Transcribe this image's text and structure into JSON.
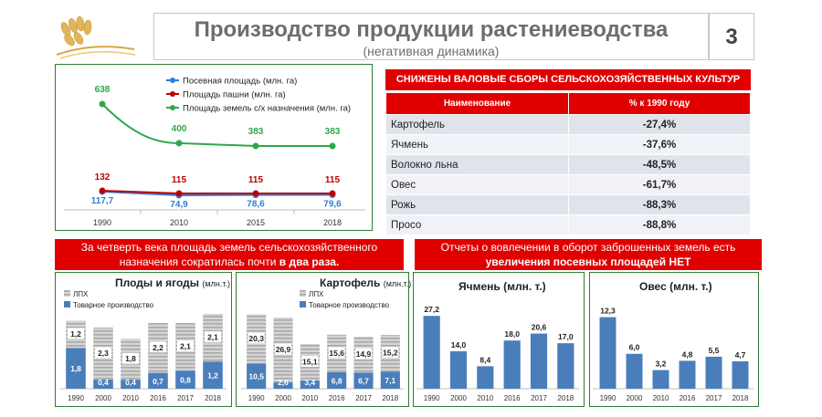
{
  "header": {
    "title": "Производство продукции растениеводства",
    "subtitle": "(негативная динамика)",
    "page_number": "3"
  },
  "crops_table": {
    "banner": "СНИЖЕНЫ ВАЛОВЫЕ СБОРЫ СЕЛЬСКОХОЗЯЙСТВЕННЫХ КУЛЬТУР",
    "col_name": "Наименование",
    "col_value": "% к 1990 году",
    "rows": [
      {
        "name": "Картофель",
        "value": "-27,4%"
      },
      {
        "name": "Ячмень",
        "value": "-37,6%"
      },
      {
        "name": "Волокно льна",
        "value": "-48,5%"
      },
      {
        "name": "Овес",
        "value": "-61,7%"
      },
      {
        "name": "Рожь",
        "value": "-88,3%"
      },
      {
        "name": "Просо",
        "value": "-88,8%"
      }
    ]
  },
  "banner_left": {
    "line1": "За четверть века площадь земель сельскохозяйственного",
    "line2_start": "назначения сократилась почти ",
    "line2_bold": "в два раза."
  },
  "banner_right": {
    "line1": "Отчеты о вовлечении в оборот заброшенных земель есть",
    "line2_bold": "увеличения посевных площадей НЕТ"
  },
  "colors": {
    "blue": "#2f7ed8",
    "red": "#c00000",
    "green": "#2ea84a",
    "bar_blue": "#4a7ebb",
    "bar_grey": "#c8c8c8",
    "banner_red": "#e00000"
  },
  "chart_data": [
    {
      "type": "line",
      "x": [
        "1990",
        "2010",
        "2015",
        "2018"
      ],
      "legend_position": "top-right",
      "series": [
        {
          "name": "Посевная площадь (млн. га)",
          "values": [
            117.7,
            74.9,
            78.6,
            79.6
          ],
          "labels": [
            "117,7",
            "74,9",
            "78,6",
            "79,6"
          ],
          "color": "#2f7ed8"
        },
        {
          "name": "Площадь пашни (млн. га)",
          "values": [
            132,
            115,
            115,
            115
          ],
          "labels": [
            "132",
            "115",
            "115",
            "115"
          ],
          "color": "#c00000"
        },
        {
          "name": "Площадь земель с/х назначения (млн. га)",
          "values": [
            638,
            400,
            383,
            383
          ],
          "labels": [
            "638",
            "400",
            "383",
            "383"
          ],
          "color": "#2ea84a"
        }
      ]
    },
    {
      "type": "bar",
      "stacked": true,
      "title": "Плоды и ягоды",
      "unit": "(млн.т.)",
      "categories": [
        "1990",
        "2000",
        "2010",
        "2016",
        "2017",
        "2018"
      ],
      "series": [
        {
          "name": "Товарное производство",
          "values": [
            1.8,
            0.4,
            0.4,
            0.7,
            0.8,
            1.2
          ],
          "labels": [
            "1,8",
            "0,4",
            "0,4",
            "0,7",
            "0,8",
            "1,2"
          ]
        },
        {
          "name": "ЛПХ",
          "values": [
            1.2,
            2.3,
            1.8,
            2.2,
            2.1,
            2.1
          ],
          "labels": [
            "1,2",
            "2,3",
            "1,8",
            "2,2",
            "2,1",
            "2,1"
          ]
        }
      ]
    },
    {
      "type": "bar",
      "stacked": true,
      "title": "Картофель",
      "unit": "(млн.т.)",
      "categories": [
        "1990",
        "2000",
        "2010",
        "2016",
        "2017",
        "2018"
      ],
      "series": [
        {
          "name": "Товарное производство",
          "values": [
            10.5,
            2.6,
            3.4,
            6.8,
            6.7,
            7.1
          ],
          "labels": [
            "10,5",
            "2,6",
            "3,4",
            "6,8",
            "6,7",
            "7,1"
          ]
        },
        {
          "name": "ЛПХ",
          "values": [
            20.3,
            26.9,
            15.1,
            15.6,
            14.9,
            15.2
          ],
          "labels": [
            "20,3",
            "26,9",
            "15,1",
            "15,6",
            "14,9",
            "15,2"
          ]
        }
      ]
    },
    {
      "type": "bar",
      "title": "Ячмень (млн. т.)",
      "categories": [
        "1990",
        "2000",
        "2010",
        "2016",
        "2017",
        "2018"
      ],
      "values": [
        27.2,
        14.0,
        8.4,
        18.0,
        20.6,
        17.0
      ],
      "labels": [
        "27,2",
        "14,0",
        "8,4",
        "18,0",
        "20,6",
        "17,0"
      ]
    },
    {
      "type": "bar",
      "title": "Овес (млн. т.)",
      "categories": [
        "1990",
        "2000",
        "2010",
        "2016",
        "2017",
        "2018"
      ],
      "values": [
        12.3,
        6.0,
        3.2,
        4.8,
        5.5,
        4.7
      ],
      "labels": [
        "12,3",
        "6,0",
        "3,2",
        "4,8",
        "5,5",
        "4,7"
      ]
    }
  ]
}
